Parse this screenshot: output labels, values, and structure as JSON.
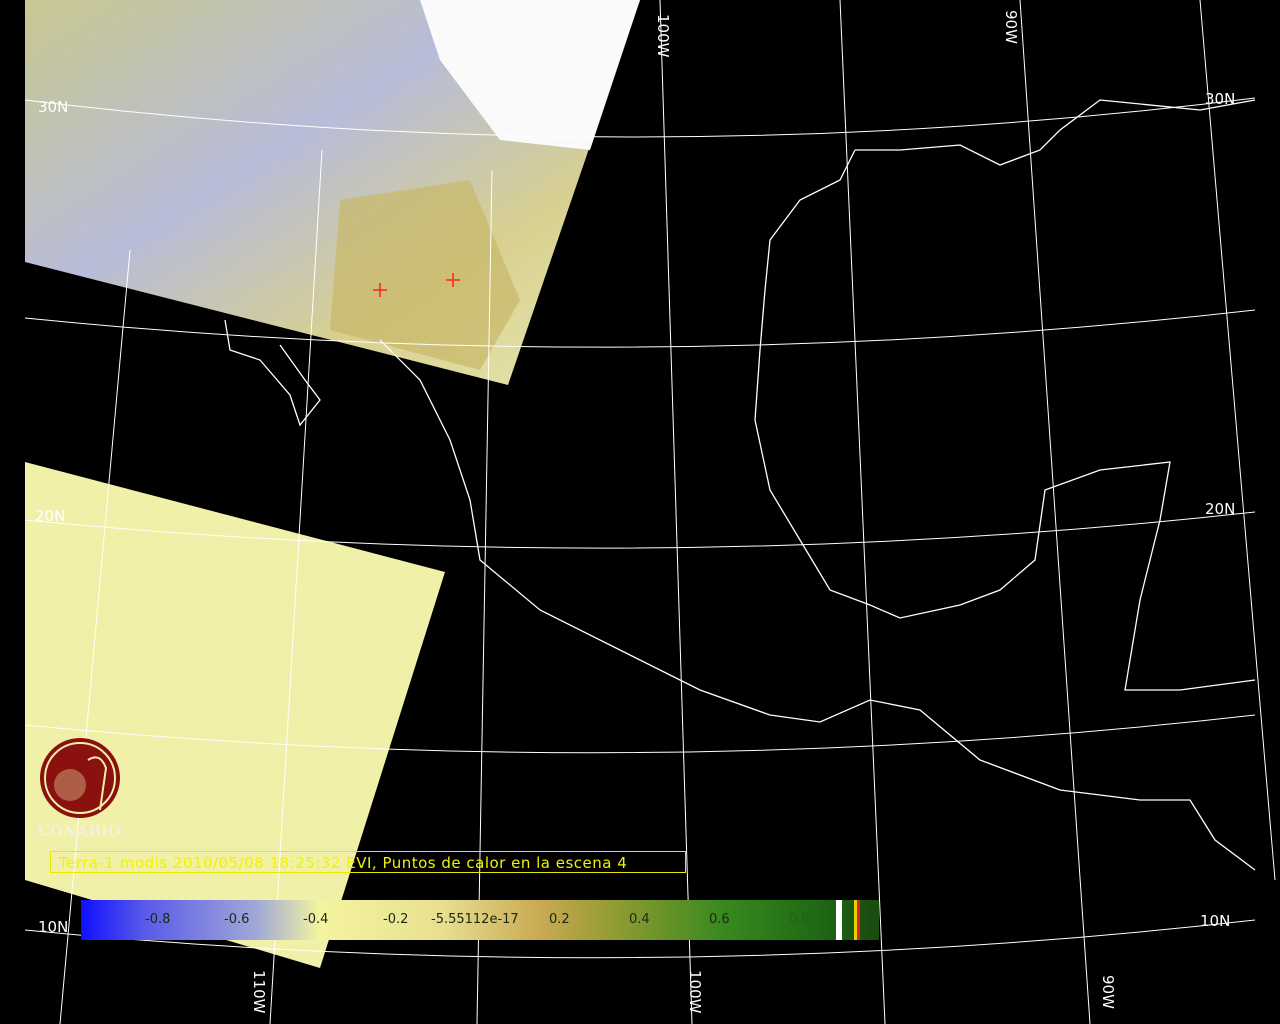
{
  "map": {
    "caption": "Terra-1 modis 2010/05/08 18:25:32 EVI, Puntos de calor en la escena 4",
    "graticule_labels": {
      "lat": [
        "30N",
        "30N",
        "20N",
        "20N",
        "10N",
        "10N"
      ],
      "lon": [
        "100W",
        "90W",
        "110W",
        "100W",
        "90W"
      ]
    },
    "colorbar": {
      "ticks": [
        "-0.8",
        "-0.6",
        "-0.4",
        "-0.2",
        "-5.55112e-17",
        "0.2",
        "0.4",
        "0.6",
        "0.8"
      ]
    },
    "logo": {
      "text": "CONABIO",
      "color": "#8b1010"
    },
    "colors": {
      "background": "#000000",
      "swath": "#f0f0a8",
      "graticule": "#ffffff",
      "caption": "#f2f200",
      "hotspot": "#ff2020"
    }
  }
}
